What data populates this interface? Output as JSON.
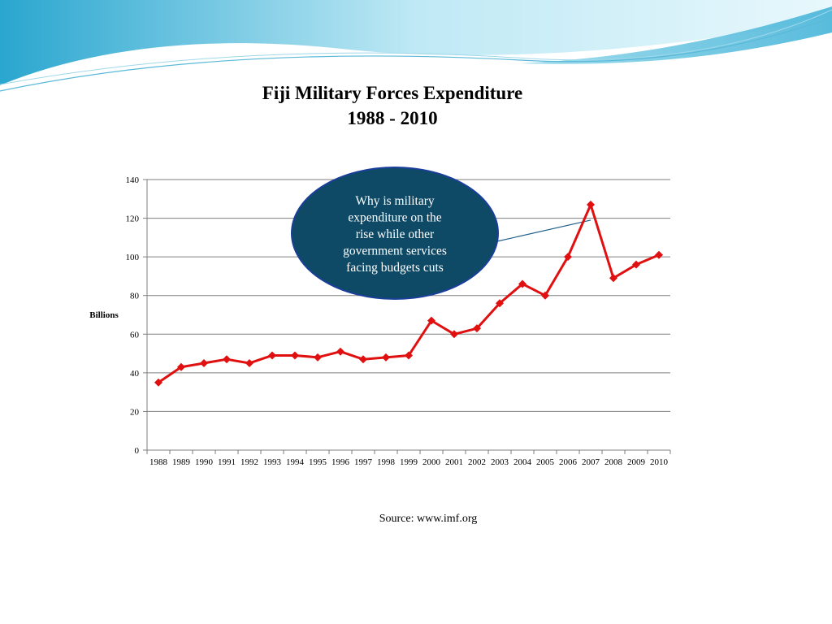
{
  "slide": {
    "title_line1": "Fiji Military  Forces Expenditure",
    "title_line2": "1988 - 2010",
    "source": "Source: www.imf.org",
    "callout_lines": [
      "Why is military",
      "expenditure on the",
      "rise while other",
      "government services",
      "facing budgets cuts"
    ]
  },
  "colors": {
    "line": "#e01010",
    "marker": "#e01010",
    "callout_fill": "#0e4a66",
    "callout_border": "#1a3f9a",
    "grid": "#7f7f7f",
    "wave_dark": "#4bb8d6",
    "wave_light": "#cfeef6"
  },
  "chart_data": {
    "type": "line",
    "title": "Fiji Military  Forces Expenditure 1988 - 2010",
    "xlabel": "",
    "ylabel": "Billions",
    "ylim": [
      0,
      140
    ],
    "yticks": [
      0,
      20,
      40,
      60,
      80,
      100,
      120,
      140
    ],
    "grid": true,
    "legend": "none",
    "categories": [
      "1988",
      "1989",
      "1990",
      "1991",
      "1992",
      "1993",
      "1994",
      "1995",
      "1996",
      "1997",
      "1998",
      "1999",
      "2000",
      "2001",
      "2002",
      "2003",
      "2004",
      "2005",
      "2006",
      "2007",
      "2008",
      "2009",
      "2010"
    ],
    "series": [
      {
        "values": [
          35,
          43,
          45,
          47,
          45,
          49,
          49,
          48,
          51,
          47,
          48,
          49,
          67,
          60,
          63,
          76,
          86,
          80,
          100,
          127,
          89,
          96,
          101
        ]
      }
    ],
    "annotation": {
      "text": "Why is military expenditure on the rise while other government services facing budgets cuts",
      "points_to": "2007"
    }
  }
}
